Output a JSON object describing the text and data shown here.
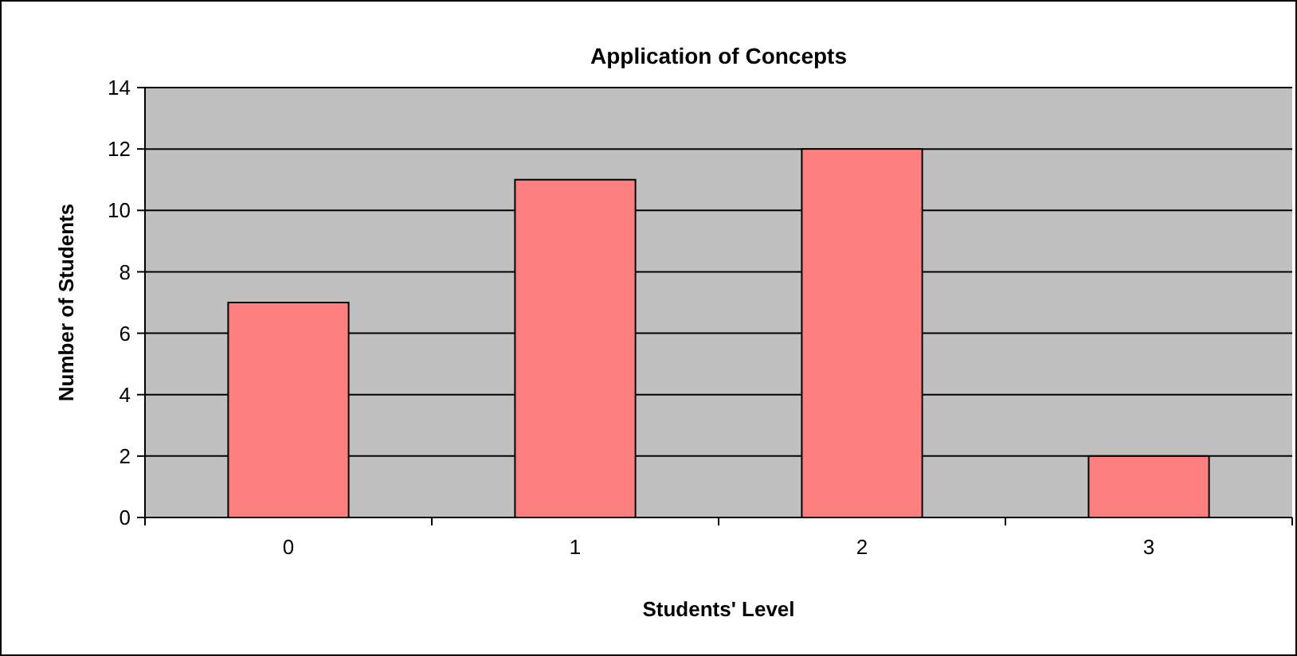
{
  "chart_data": {
    "type": "bar",
    "title": "Application of Concepts",
    "xlabel": "Students' Level",
    "ylabel": "Number of Students",
    "categories": [
      "0",
      "1",
      "2",
      "3"
    ],
    "values": [
      7,
      11,
      12,
      2
    ],
    "color": "#ff8080",
    "ylim": [
      0,
      14
    ],
    "yticks": [
      0,
      2,
      4,
      6,
      8,
      10,
      12,
      14
    ],
    "grid": "y"
  }
}
